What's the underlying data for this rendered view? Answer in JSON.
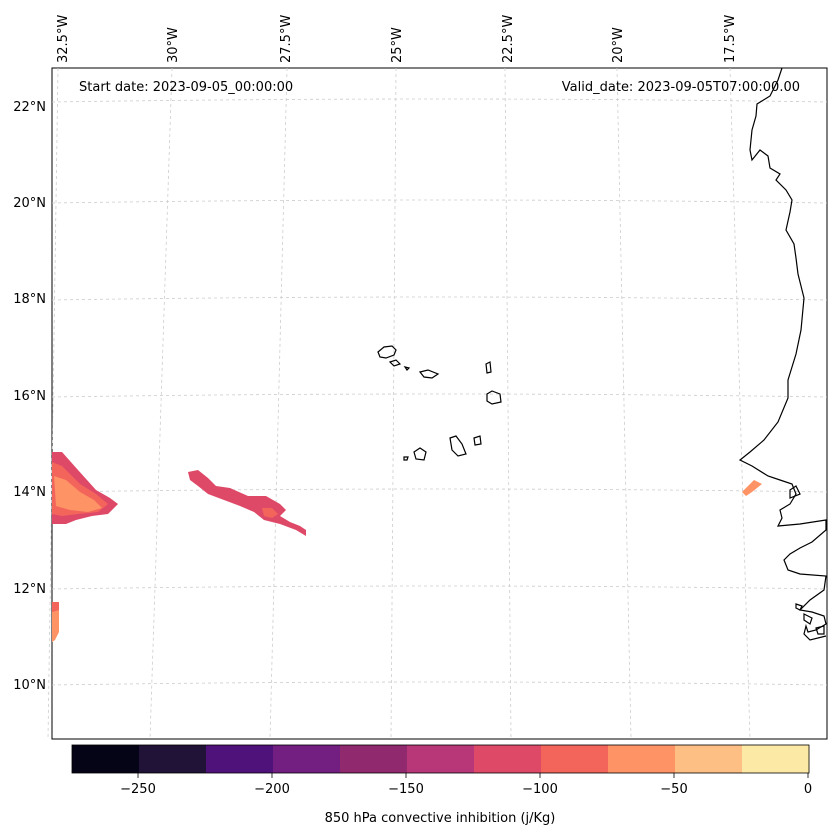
{
  "header": {
    "start_date": "Start date: 2023-09-05_00:00:00",
    "valid_date": "Valid_date: 2023-09-05T07:00:00.00"
  },
  "lon_labels": [
    "32.5°W",
    "30°W",
    "27.5°W",
    "25°W",
    "22.5°W",
    "20°W",
    "17.5°W"
  ],
  "lat_labels": [
    "22°N",
    "20°N",
    "18°N",
    "16°N",
    "14°N",
    "12°N",
    "10°N"
  ],
  "colorbar": {
    "label": "850 hPa convective inhibition (j/Kg)",
    "ticks": [
      "−250",
      "−200",
      "−150",
      "−100",
      "−50",
      "0"
    ],
    "levels": [
      -275,
      -250,
      -225,
      -200,
      -175,
      -150,
      -125,
      -100,
      -75,
      -50,
      -25,
      0
    ],
    "colors": [
      "#050416",
      "#211337",
      "#4f127b",
      "#721f81",
      "#91296f",
      "#b73779",
      "#de4968",
      "#f3655b",
      "#fe9366",
      "#febf84",
      "#fde9a6"
    ]
  },
  "legend_colors": {
    "strong": "#de4968",
    "mid": "#f3655b",
    "weak": "#fe9366",
    "coast": "#000000",
    "grid": "#cccccc"
  }
}
